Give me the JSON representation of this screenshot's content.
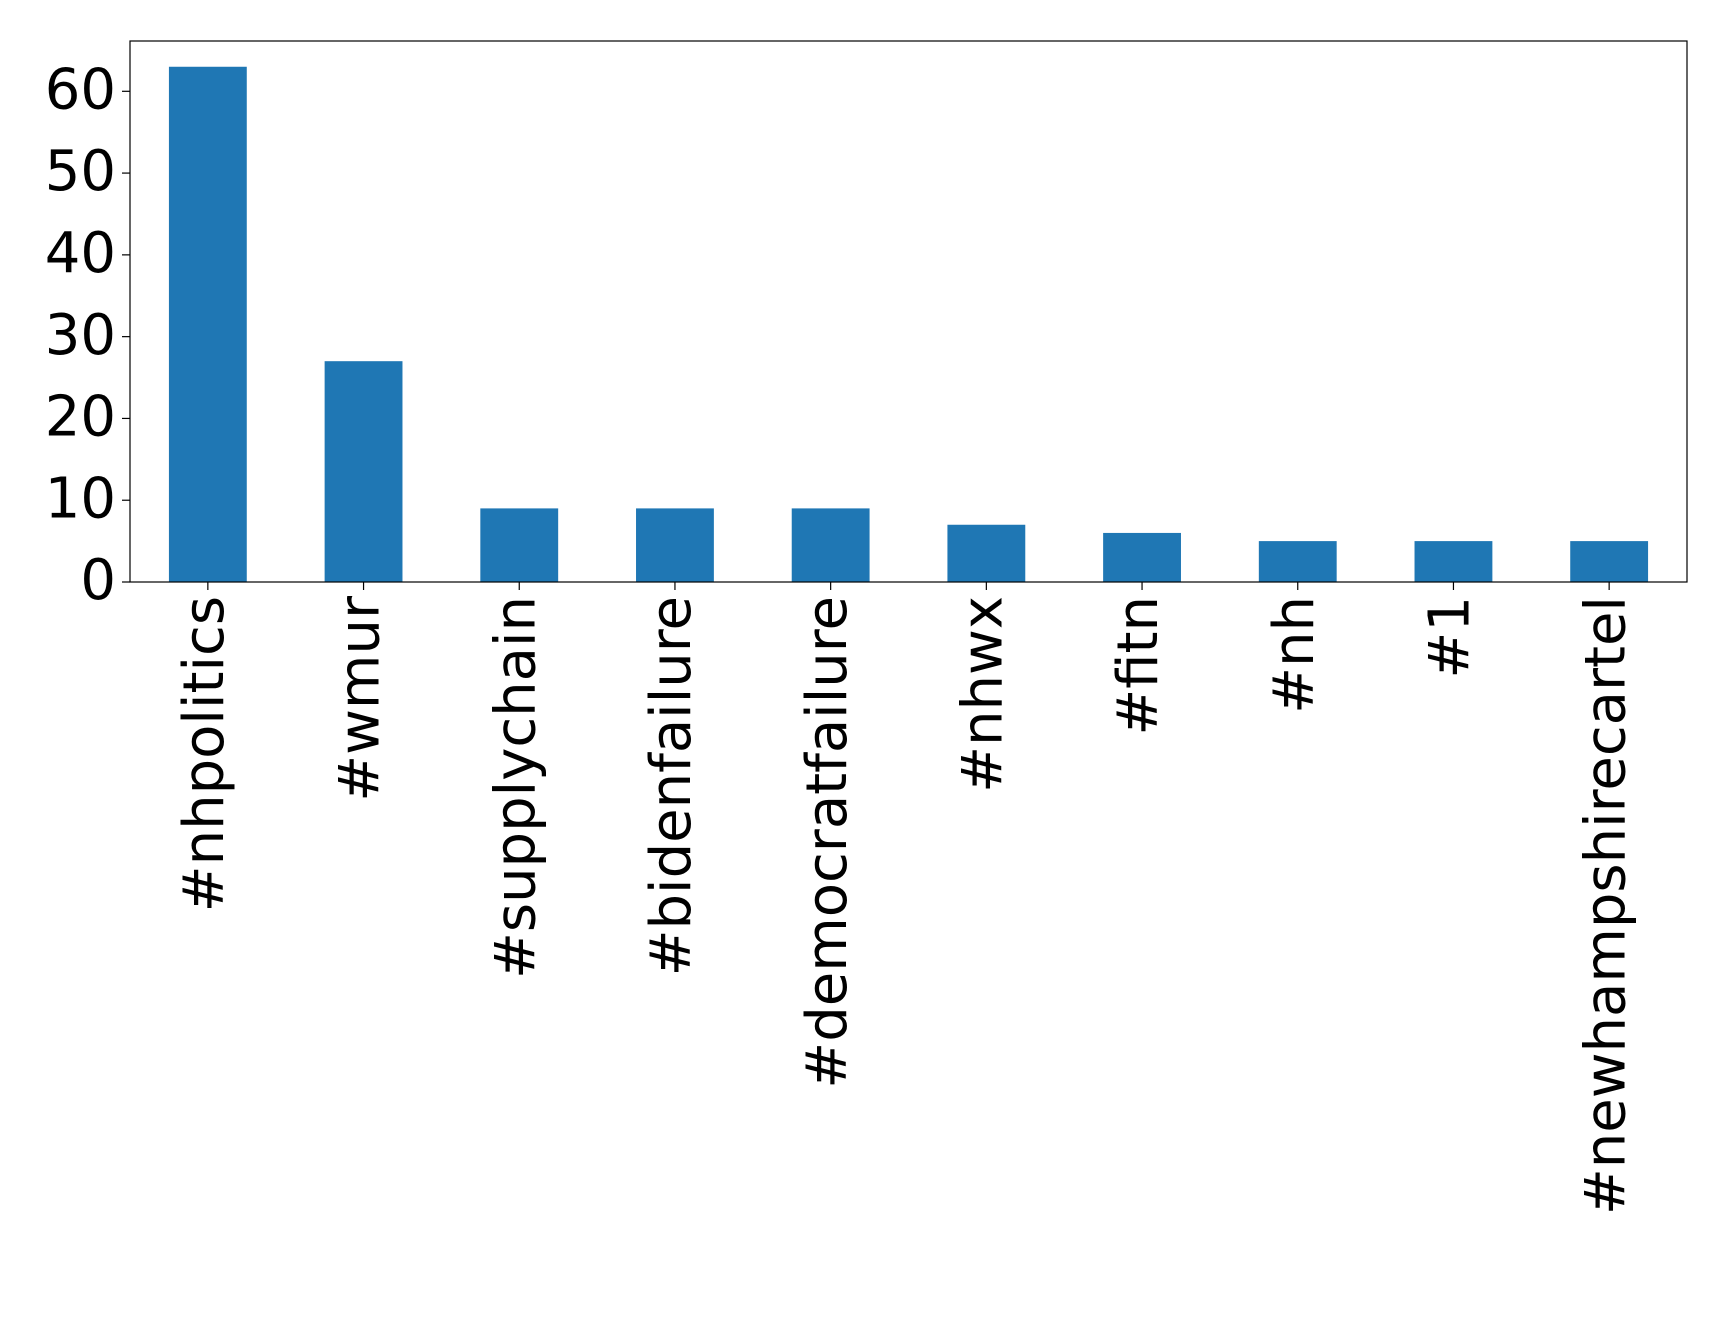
{
  "chart_data": {
    "type": "bar",
    "categories": [
      "#nhpolitics",
      "#wmur",
      "#supplychain",
      "#bidenfailure",
      "#democratfailure",
      "#nhwx",
      "#fitn",
      "#nh",
      "#1",
      "#newhampshirecartel"
    ],
    "values": [
      63,
      27,
      9,
      9,
      9,
      7,
      6,
      5,
      5,
      5
    ],
    "color": "#1f77b4",
    "ylim": [
      0,
      66.15
    ],
    "yticks": [
      0,
      10,
      20,
      30,
      40,
      50,
      60
    ],
    "grid": false
  }
}
